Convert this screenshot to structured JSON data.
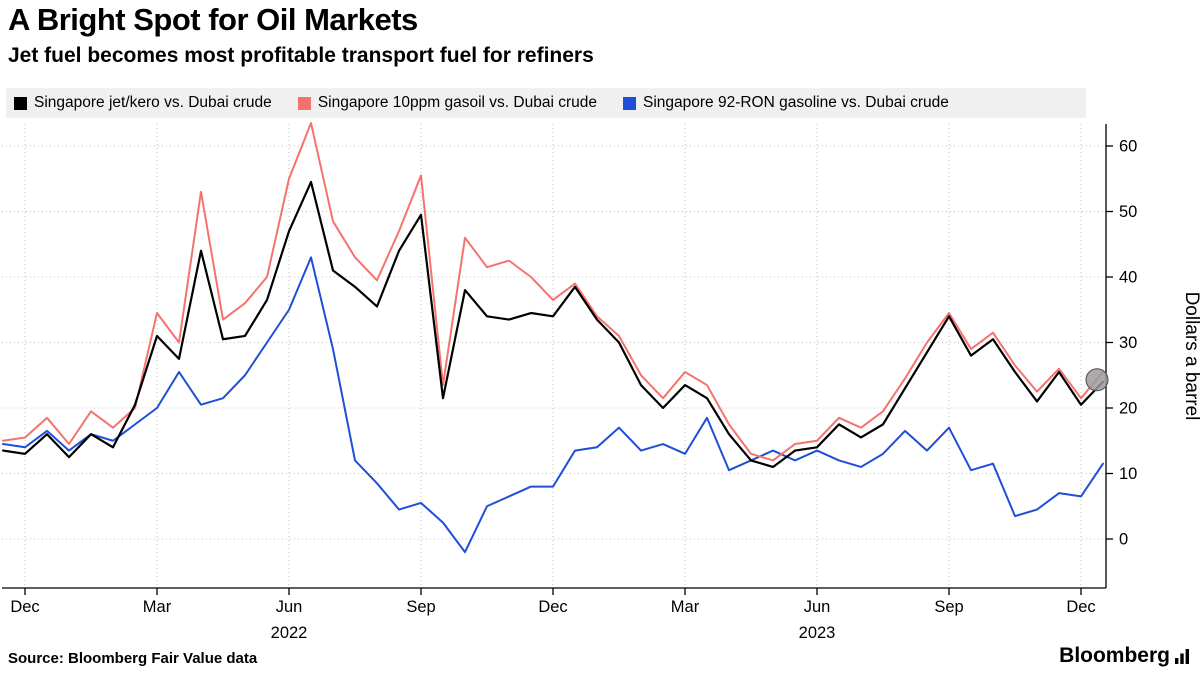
{
  "chart_data": {
    "type": "line",
    "title": "A Bright Spot for Oil Markets",
    "subtitle": "Jet fuel becomes most profitable transport fuel for refiners",
    "ylabel": "Dollars a barrel",
    "y_ticks": [
      0,
      10,
      20,
      30,
      40,
      50,
      60
    ],
    "ylim": [
      -4,
      66
    ],
    "grid": "dotted",
    "legend_position": "top",
    "x_unit": "months since Dec 2021",
    "x": [
      -0.5,
      0,
      0.5,
      1,
      1.5,
      2,
      2.5,
      3,
      3.5,
      4,
      4.5,
      5,
      5.5,
      6,
      6.5,
      7,
      7.5,
      8,
      8.5,
      9,
      9.5,
      10,
      10.5,
      11,
      11.5,
      12,
      12.5,
      13,
      13.5,
      14,
      14.5,
      15,
      15.5,
      16,
      16.5,
      17,
      17.5,
      18,
      18.5,
      19,
      19.5,
      20,
      20.5,
      21,
      21.5,
      22,
      22.5,
      23,
      23.5,
      24,
      24.5
    ],
    "series": [
      {
        "name": "Singapore jet/kero vs. Dubai crude",
        "color": "#000000",
        "values": [
          13.5,
          13,
          16,
          12.5,
          16,
          14,
          20.5,
          31,
          27.5,
          44,
          30.5,
          31,
          36.5,
          47,
          54.5,
          41,
          38.5,
          35.5,
          44,
          49.5,
          21.5,
          38,
          34,
          33.5,
          34.5,
          34,
          38.5,
          33.5,
          30,
          23.5,
          20,
          23.5,
          21.5,
          16,
          12,
          11,
          13.5,
          14,
          17.5,
          15.5,
          17.5,
          23,
          28.5,
          34,
          28,
          30.5,
          25.5,
          21,
          25.5,
          20.5,
          24
        ]
      },
      {
        "name": "Singapore 10ppm gasoil vs. Dubai crude",
        "color": "#f4736f",
        "values": [
          15,
          15.5,
          18.5,
          14.5,
          19.5,
          17,
          20,
          34.5,
          30,
          53,
          33.5,
          36,
          40,
          55,
          63.5,
          48.5,
          43,
          39.5,
          47,
          55.5,
          23.5,
          46,
          41.5,
          42.5,
          40,
          36.5,
          39,
          34,
          31,
          25,
          21.5,
          25.5,
          23.5,
          17.5,
          13,
          12,
          14.5,
          15,
          18.5,
          17,
          19.5,
          24.5,
          30,
          34.5,
          29,
          31.5,
          26.5,
          22.5,
          26,
          21.5,
          25.5
        ]
      },
      {
        "name": "Singapore 92-RON gasoline vs. Dubai crude",
        "color": "#1f4ed8",
        "values": [
          14.5,
          14,
          16.5,
          13.5,
          16,
          15,
          17.5,
          20,
          25.5,
          20.5,
          21.5,
          25,
          30,
          35,
          43,
          29,
          12,
          8.5,
          4.5,
          5.5,
          2.5,
          -2,
          5,
          6.5,
          8,
          8,
          13.5,
          14,
          17,
          13.5,
          14.5,
          13,
          18.5,
          10.5,
          12,
          13.5,
          12,
          13.5,
          12,
          11,
          13,
          16.5,
          13.5,
          17,
          10.5,
          11.5,
          3.5,
          4.5,
          7,
          6.5,
          11.5
        ]
      }
    ],
    "x_ticks": [
      {
        "month": 0,
        "label": "Dec"
      },
      {
        "month": 3,
        "label": "Mar"
      },
      {
        "month": 6,
        "label": "Jun"
      },
      {
        "month": 9,
        "label": "Sep"
      },
      {
        "month": 12,
        "label": "Dec"
      },
      {
        "month": 15,
        "label": "Mar"
      },
      {
        "month": 18,
        "label": "Jun"
      },
      {
        "month": 21,
        "label": "Sep"
      },
      {
        "month": 24,
        "label": "Dec"
      }
    ],
    "year_labels": [
      {
        "month": 6,
        "label": "2022"
      },
      {
        "month": 18,
        "label": "2023"
      }
    ],
    "end_marker": {
      "on_series": 0,
      "fill": "#9b9b9b"
    }
  },
  "footer": {
    "source": "Source: Bloomberg Fair Value data",
    "brand": "Bloomberg"
  }
}
